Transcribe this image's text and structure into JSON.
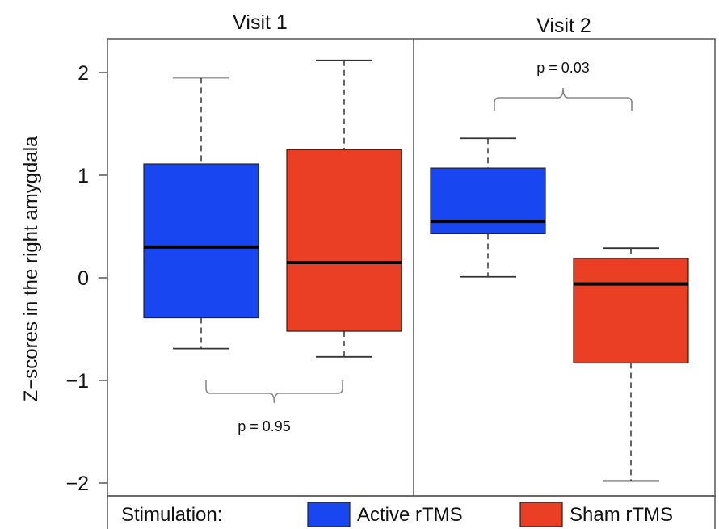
{
  "chart_data": {
    "type": "box",
    "ylabel": "Z−scores in the right amygdala",
    "ylim": [
      -2.1,
      2.35
    ],
    "yticks": [
      2,
      1,
      0,
      -1,
      -2
    ],
    "ytick_labels": [
      "2",
      "1",
      "0",
      "−1",
      "−2"
    ],
    "panels": [
      {
        "title": "Visit 1",
        "boxes": [
          {
            "group": "Active rTMS",
            "min": -0.69,
            "q1": -0.39,
            "median": 0.3,
            "q3": 1.11,
            "max": 1.95
          },
          {
            "group": "Sham rTMS",
            "min": -0.77,
            "q1": -0.52,
            "median": 0.15,
            "q3": 1.25,
            "max": 2.12
          }
        ],
        "annotation": {
          "text": "p = 0.95",
          "side": "below"
        }
      },
      {
        "title": "Visit 2",
        "boxes": [
          {
            "group": "Active rTMS",
            "min": 0.01,
            "q1": 0.43,
            "median": 0.55,
            "q3": 1.07,
            "max": 1.36
          },
          {
            "group": "Sham rTMS",
            "min": -1.98,
            "q1": -0.83,
            "median": -0.06,
            "q3": 0.19,
            "max": 0.29
          }
        ],
        "annotation": {
          "text": "p = 0.03",
          "side": "above"
        }
      }
    ],
    "legend": {
      "title": "Stimulation:",
      "position": "bottom",
      "items": [
        {
          "label": "Active rTMS",
          "color": "#1846F0"
        },
        {
          "label": "Sham rTMS",
          "color": "#EB3F25"
        }
      ]
    }
  }
}
